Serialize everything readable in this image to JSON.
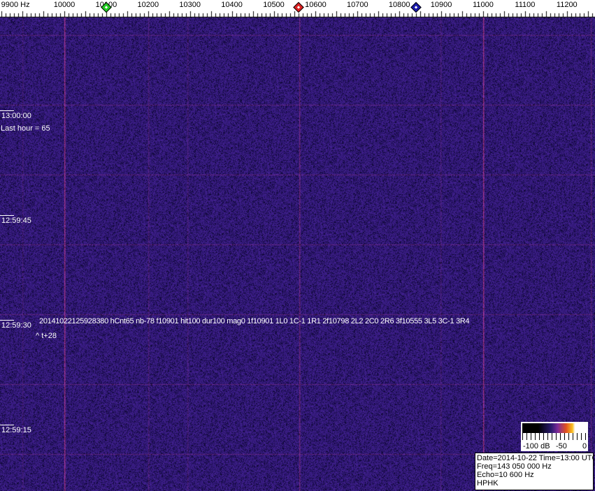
{
  "frequency_scale": {
    "labels": [
      {
        "text": "9900 Hz",
        "hz": 9900
      },
      {
        "text": "10000",
        "hz": 10000
      },
      {
        "text": "10100",
        "hz": 10100
      },
      {
        "text": "10200",
        "hz": 10200
      },
      {
        "text": "10300",
        "hz": 10300
      },
      {
        "text": "10400",
        "hz": 10400
      },
      {
        "text": "10500",
        "hz": 10500
      },
      {
        "text": "10600",
        "hz": 10600
      },
      {
        "text": "10700",
        "hz": 10700
      },
      {
        "text": "10800",
        "hz": 10800
      },
      {
        "text": "10900",
        "hz": 10900
      },
      {
        "text": "11000",
        "hz": 11000
      },
      {
        "text": "11100",
        "hz": 11100
      },
      {
        "text": "11200",
        "hz": 11200
      }
    ],
    "markers": [
      {
        "name": "green-marker",
        "hz": 10100,
        "color": "#22cc22"
      },
      {
        "name": "red-marker",
        "hz": 10560,
        "color": "#dd2222"
      },
      {
        "name": "blue-marker",
        "hz": 10840,
        "color": "#1a1aaa"
      }
    ]
  },
  "timestamps": [
    "13:00:00",
    "12:59:45",
    "12:59:30",
    "12:59:15"
  ],
  "last_hour": "Last hour = 65",
  "detection": {
    "line": "20141022125928380 hCnt65 nb-78 f10901 hit100 dur100 mag0 1f10901 1L0 1C-1 1R1 2f10798 2L2 2C0 2R6 3f10555 3L5 3C-1 3R4",
    "offset": "^ t+28"
  },
  "legend": {
    "labels": [
      "-100 dB",
      "-50",
      "0"
    ]
  },
  "info": {
    "date_time": "Date=2014-10-22 Time=13:00 UTC",
    "freq": "Freq=143 050 000 Hz",
    "echo": "Echo=10 600 Hz",
    "station": "HPHK"
  },
  "colors": {
    "background": "#2a1a6e",
    "line": "#a03080"
  }
}
